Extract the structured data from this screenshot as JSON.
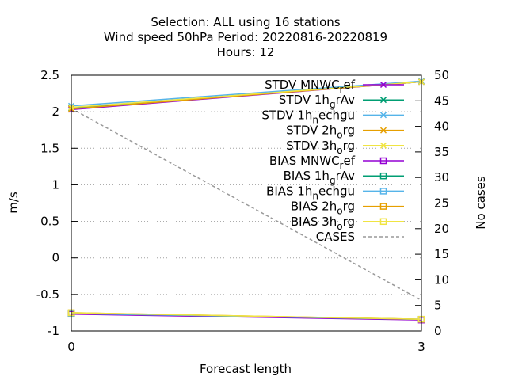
{
  "chart_data": {
    "type": "line",
    "title_lines": [
      "Selection: ALL using    16 stations",
      "Wind speed 50hPa   Period: 20220816-20220819",
      "Hours:  12"
    ],
    "xlabel": "Forecast length",
    "ylabel": "m/s",
    "y2label": "No cases",
    "x_ticks": [
      "0",
      "3"
    ],
    "xlim": [
      0,
      3
    ],
    "ylim": [
      -1,
      2.5
    ],
    "y_ticks": [
      "-1",
      "-0.5",
      "0",
      "0.5",
      "1",
      "1.5",
      "2",
      "2.5"
    ],
    "y2lim": [
      0,
      50
    ],
    "y2_ticks": [
      "0",
      "5",
      "10",
      "15",
      "20",
      "25",
      "30",
      "35",
      "40",
      "45",
      "50"
    ],
    "grid": "horizontal dotted",
    "legend_position": "top-right inside",
    "x": [
      0,
      3
    ],
    "series": [
      {
        "name": "STDV MNWC_ref",
        "sub": "r",
        "label_parts": [
          "STDV MNWC",
          "r",
          "ef"
        ],
        "color": "#9400d3",
        "marker": "x",
        "axis": "y",
        "values": [
          2.03,
          2.41
        ]
      },
      {
        "name": "STDV 1h_grAv",
        "label_parts": [
          "STDV 1h",
          "g",
          "rAv"
        ],
        "color": "#009e73",
        "marker": "x",
        "axis": "y",
        "values": [
          2.05,
          2.41
        ]
      },
      {
        "name": "STDV 1h_nechgu",
        "label_parts": [
          "STDV 1h",
          "n",
          "echgu"
        ],
        "color": "#56b4e9",
        "marker": "x",
        "axis": "y",
        "values": [
          2.08,
          2.42
        ]
      },
      {
        "name": "STDV 2h_org",
        "label_parts": [
          "STDV 2h",
          "o",
          "rg"
        ],
        "color": "#e69f00",
        "marker": "x",
        "axis": "y",
        "values": [
          2.04,
          2.41
        ]
      },
      {
        "name": "STDV 3h_org",
        "label_parts": [
          "STDV 3h",
          "o",
          "rg"
        ],
        "color": "#f0e442",
        "marker": "x",
        "axis": "y",
        "values": [
          2.06,
          2.41
        ]
      },
      {
        "name": "BIAS MNWC_ref",
        "label_parts": [
          "BIAS MNWC",
          "r",
          "ef"
        ],
        "color": "#9400d3",
        "marker": "square",
        "axis": "y",
        "values": [
          -0.77,
          -0.85
        ]
      },
      {
        "name": "BIAS 1h_grAv",
        "label_parts": [
          "BIAS 1h",
          "g",
          "rAv"
        ],
        "color": "#009e73",
        "marker": "square",
        "axis": "y",
        "values": [
          -0.76,
          -0.84
        ]
      },
      {
        "name": "BIAS 1h_nechgu",
        "label_parts": [
          "BIAS 1h",
          "n",
          "echgu"
        ],
        "color": "#56b4e9",
        "marker": "square",
        "axis": "y",
        "values": [
          -0.76,
          -0.84
        ]
      },
      {
        "name": "BIAS 2h_org",
        "label_parts": [
          "BIAS 2h",
          "o",
          "rg"
        ],
        "color": "#e69f00",
        "marker": "square",
        "axis": "y",
        "values": [
          -0.75,
          -0.84
        ]
      },
      {
        "name": "BIAS 3h_org",
        "label_parts": [
          "BIAS 3h",
          "o",
          "rg"
        ],
        "color": "#f0e442",
        "marker": "square",
        "axis": "y",
        "values": [
          -0.75,
          -0.84
        ]
      },
      {
        "name": "CASES",
        "label_parts": [
          "CASES",
          "",
          ""
        ],
        "color": "#999999",
        "marker": "none",
        "dash": true,
        "axis": "y2",
        "values": [
          43.5,
          6
        ]
      }
    ]
  }
}
